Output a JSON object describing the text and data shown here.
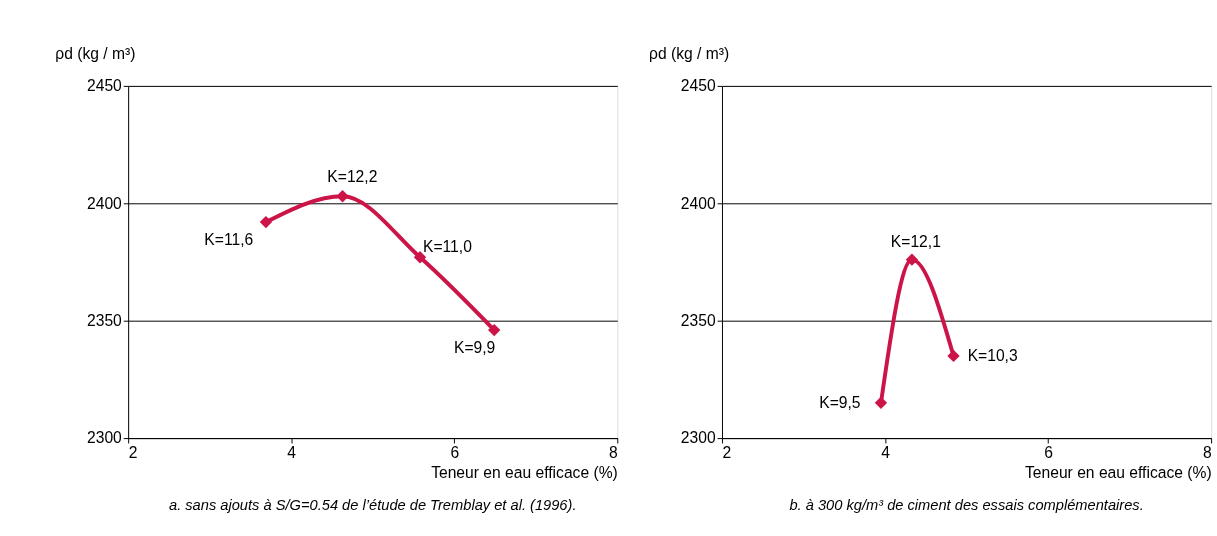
{
  "chart_data": [
    {
      "type": "line",
      "xlabel": "Teneur en eau efficace (%)",
      "ylabel": "ρd (kg / m³)",
      "x": [
        3.69,
        4.63,
        5.58,
        6.49
      ],
      "series": [
        {
          "color": "#cc1448",
          "values": [
            2392,
            2403,
            2377,
            2346
          ]
        }
      ],
      "xlim": [
        2,
        8
      ],
      "xticks": [
        2,
        4,
        6,
        8
      ],
      "ylim": [
        2300,
        2450
      ],
      "yticks": [
        2300,
        2350,
        2400,
        2450
      ],
      "grid": "y",
      "marker": "diamond",
      "line_style": "solid",
      "annotations": [
        {
          "text": "K=11,6",
          "x": 3.69,
          "y": 2392
        },
        {
          "text": "K=12,2",
          "x": 4.63,
          "y": 2403
        },
        {
          "text": "K=11,0",
          "x": 5.58,
          "y": 2377
        },
        {
          "text": "K=9,9",
          "x": 6.49,
          "y": 2346
        },
        "a. sans ajouts à S/G=0.54 de l’étude de Tremblay et al. (1996)."
      ]
    },
    {
      "type": "line",
      "xlabel": "Teneur en eau efficace (%)",
      "ylabel": "ρd (kg / m³)",
      "x": [
        3.95,
        4.33,
        4.84
      ],
      "series": [
        {
          "color": "#cc1448",
          "values": [
            2315,
            2376,
            2335
          ]
        }
      ],
      "xlim": [
        2,
        8
      ],
      "xticks": [
        2,
        4,
        6,
        8
      ],
      "ylim": [
        2300,
        2450
      ],
      "yticks": [
        2300,
        2350,
        2400,
        2450
      ],
      "grid": "y",
      "marker": "diamond",
      "line_style": "solid",
      "annotations": [
        {
          "text": "K=9,5",
          "x": 3.95,
          "y": 2315
        },
        {
          "text": "K=12,1",
          "x": 4.33,
          "y": 2376
        },
        {
          "text": "K=10,3",
          "x": 4.84,
          "y": 2335
        },
        "b. à 300 kg/m³ de ciment des essais complémentaires."
      ]
    }
  ]
}
